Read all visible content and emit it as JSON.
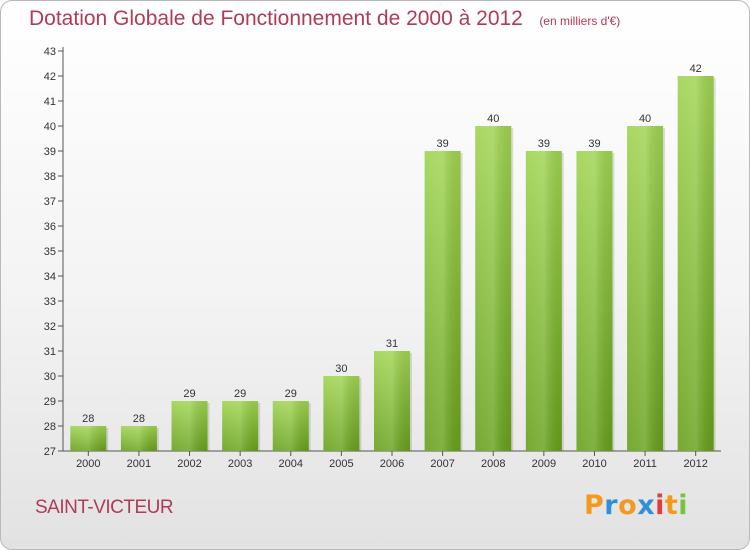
{
  "chart_data": {
    "type": "bar",
    "title": "Dotation Globale de Fonctionnement de 2000 à 2012",
    "subtitle": "(en milliers d'€)",
    "categories": [
      "2000",
      "2001",
      "2002",
      "2003",
      "2004",
      "2005",
      "2006",
      "2007",
      "2008",
      "2009",
      "2010",
      "2011",
      "2012"
    ],
    "values": [
      28,
      28,
      29,
      29,
      29,
      30,
      31,
      39,
      40,
      39,
      39,
      40,
      42
    ],
    "ylim": [
      27,
      43
    ],
    "yticks": [
      27,
      28,
      29,
      30,
      31,
      32,
      33,
      34,
      35,
      36,
      37,
      38,
      39,
      40,
      41,
      42,
      43
    ],
    "grid": false,
    "legend": "none",
    "bar_color_top": "#9fd450",
    "bar_color_bottom": "#66a01a"
  },
  "footer": {
    "city": "SAINT-VICTEUR",
    "logo_letters": [
      "P",
      "r",
      "o",
      "x",
      "i",
      "t",
      "i"
    ],
    "logo_colors": [
      "#f39a1c",
      "#2f8fd8",
      "#f39a1c",
      "#2f8fd8",
      "#e23b3b",
      "#f39a1c",
      "#7ac142"
    ]
  },
  "colors": {
    "title": "#b23a58",
    "axis": "#555555",
    "frame_border": "#b9b9b9"
  }
}
